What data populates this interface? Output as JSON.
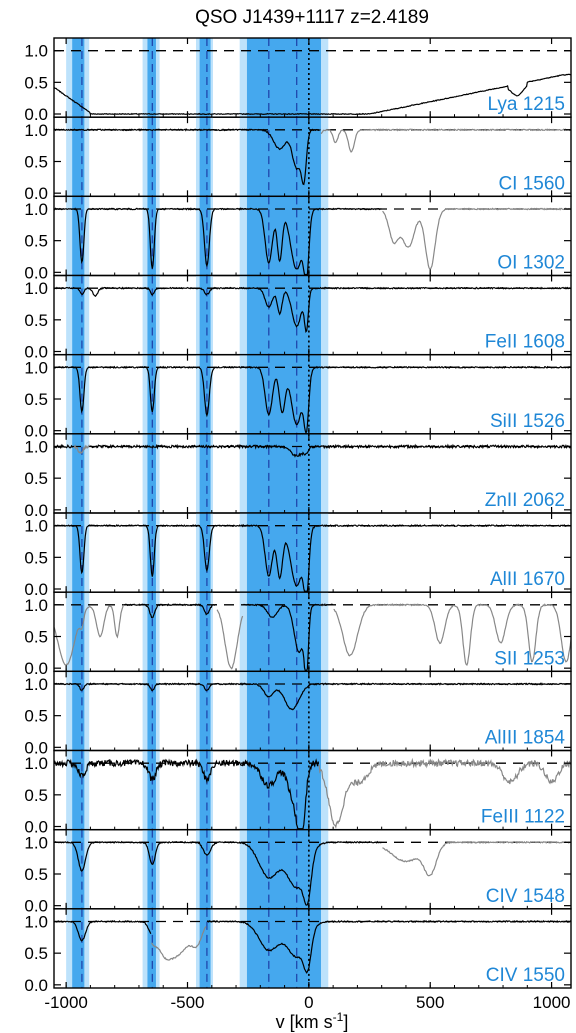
{
  "chart_data": {
    "type": "line",
    "title": "QSO J1439+1117  z=2.4189",
    "xlabel": "v [km s",
    "xlabel_sup": "-1",
    "xlabel_end": "]",
    "xlim": [
      -1050,
      1080
    ],
    "ylim": [
      -0.05,
      1.2
    ],
    "x_ticks": [
      -1000,
      -500,
      0,
      500,
      1000
    ],
    "x_tick_labels": [
      "-1000",
      "-500",
      "0",
      "500",
      "1000"
    ],
    "y_ticks": [
      0.0,
      0.5,
      1.0
    ],
    "y_tick_labels": [
      "0.0",
      "0.5",
      "1.0"
    ],
    "continuum_level": 1.0,
    "component_velocities": [
      -935,
      -645,
      -420,
      -165,
      -50
    ],
    "systemic_velocity": 0,
    "shaded_regions_light": [
      [
        -1000,
        -905
      ],
      [
        -685,
        -615
      ],
      [
        -465,
        -395
      ],
      [
        -285,
        80
      ]
    ],
    "shaded_regions_dark": [
      [
        -975,
        -925
      ],
      [
        -665,
        -630
      ],
      [
        -450,
        -405
      ],
      [
        -255,
        50
      ]
    ],
    "panels": [
      {
        "label": "Lya 1215",
        "type": "lya"
      },
      {
        "label": "CI 1560",
        "type": "ci"
      },
      {
        "label": "OI 1302",
        "type": "oi"
      },
      {
        "label": "FeII 1608",
        "type": "feii"
      },
      {
        "label": "SiII 1526",
        "type": "siii1526"
      },
      {
        "label": "ZnII 2062",
        "type": "znii"
      },
      {
        "label": "AlII 1670",
        "type": "alii"
      },
      {
        "label": "SII 1253",
        "type": "sii"
      },
      {
        "label": "AlIII 1854",
        "type": "aliii"
      },
      {
        "label": "FeIII 1122",
        "type": "feiii"
      },
      {
        "label": "CIV 1548",
        "type": "civ1548"
      },
      {
        "label": "CIV 1550",
        "type": "civ1550"
      }
    ],
    "colors": {
      "shade_light": "#bde2fb",
      "shade_dark": "#45a8ee",
      "spectrum": "#000000",
      "blend": "#888888",
      "component_marker": "#1c3fa8",
      "label": "#1f87d6"
    }
  }
}
